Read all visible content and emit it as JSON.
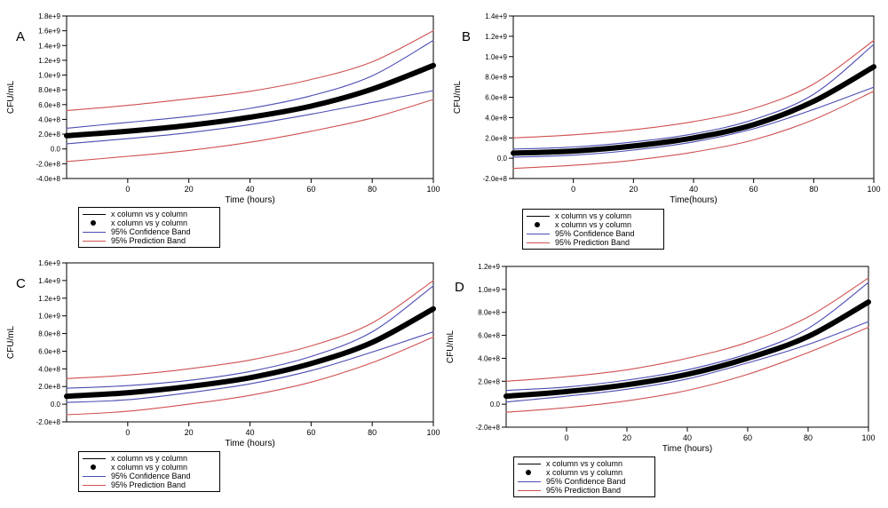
{
  "legend_entries": [
    {
      "label": "x column vs y column",
      "symbol": "line",
      "color": "#000000"
    },
    {
      "label": "x column vs y column",
      "symbol": "dot",
      "color": "#000000"
    },
    {
      "label": "95% Confidence Band",
      "symbol": "line",
      "color": "#4b4bb4"
    },
    {
      "label": "95% Prediction Band",
      "symbol": "line",
      "color": "#d05050"
    }
  ],
  "colors": {
    "fit": "#000000",
    "confidence": "#4b4bb4",
    "prediction": "#d05050"
  },
  "chart_data": [
    {
      "panel": "A",
      "type": "line",
      "xlabel": "Time (hours)",
      "ylabel": "CFU/mL",
      "xlim": [
        -20,
        100
      ],
      "ylim": [
        -400000000,
        1800000000
      ],
      "xticks": [
        0,
        20,
        40,
        60,
        80,
        100
      ],
      "yticks": [
        -400000000,
        -200000000,
        0,
        200000000,
        400000000,
        600000000,
        800000000,
        1000000000,
        1200000000,
        1400000000,
        1600000000,
        1800000000
      ],
      "ytick_labels": [
        "-4.0e+8",
        "-2.0e+8",
        "0.0",
        "2.0e+8",
        "4.0e+8",
        "6.0e+8",
        "8.0e+8",
        "1.0e+9",
        "1.2e+9",
        "1.4e+9",
        "1.6e+9",
        "1.8e+9"
      ],
      "x": [
        -20,
        0,
        20,
        40,
        60,
        80,
        100
      ],
      "series": [
        {
          "name": "x column vs y column",
          "role": "fit",
          "values": [
            180000000,
            240000000,
            320000000,
            430000000,
            580000000,
            810000000,
            1130000000
          ]
        },
        {
          "name": "95% Confidence Band",
          "role": "ci-upper",
          "values": [
            280000000,
            360000000,
            440000000,
            550000000,
            720000000,
            990000000,
            1470000000
          ]
        },
        {
          "name": "95% Confidence Band",
          "role": "ci-lower",
          "values": [
            70000000,
            140000000,
            220000000,
            330000000,
            470000000,
            630000000,
            790000000
          ]
        },
        {
          "name": "95% Prediction Band",
          "role": "pi-upper",
          "values": [
            520000000,
            590000000,
            680000000,
            780000000,
            940000000,
            1180000000,
            1600000000
          ]
        },
        {
          "name": "95% Prediction Band",
          "role": "pi-lower",
          "values": [
            -170000000,
            -100000000,
            -20000000,
            90000000,
            240000000,
            420000000,
            670000000
          ]
        }
      ]
    },
    {
      "panel": "B",
      "type": "line",
      "xlabel": "Time(hours)",
      "ylabel": "CFU/mL",
      "xlim": [
        -20,
        100
      ],
      "ylim": [
        -200000000,
        1400000000
      ],
      "xticks": [
        0,
        20,
        40,
        60,
        80,
        100
      ],
      "yticks": [
        -200000000,
        0,
        200000000,
        400000000,
        600000000,
        800000000,
        1000000000,
        1200000000,
        1400000000
      ],
      "ytick_labels": [
        "-2.0e+8",
        "0.0",
        "2.0e+8",
        "4.0e+8",
        "6.0e+8",
        "8.0e+8",
        "1.0e+9",
        "1.2e+9",
        "1.4e+9"
      ],
      "x": [
        -20,
        0,
        20,
        40,
        60,
        80,
        100
      ],
      "series": [
        {
          "name": "x column vs y column",
          "role": "fit",
          "values": [
            50000000,
            70000000,
            120000000,
            200000000,
            330000000,
            560000000,
            900000000
          ]
        },
        {
          "name": "95% Confidence Band",
          "role": "ci-upper",
          "values": [
            90000000,
            110000000,
            160000000,
            240000000,
            380000000,
            630000000,
            1120000000
          ]
        },
        {
          "name": "95% Confidence Band",
          "role": "ci-lower",
          "values": [
            10000000,
            30000000,
            80000000,
            160000000,
            290000000,
            480000000,
            700000000
          ]
        },
        {
          "name": "95% Prediction Band",
          "role": "pi-upper",
          "values": [
            200000000,
            230000000,
            280000000,
            360000000,
            490000000,
            730000000,
            1160000000
          ]
        },
        {
          "name": "95% Prediction Band",
          "role": "pi-lower",
          "values": [
            -100000000,
            -70000000,
            -20000000,
            60000000,
            180000000,
            380000000,
            660000000
          ]
        }
      ]
    },
    {
      "panel": "C",
      "type": "line",
      "xlabel": "Time (hours)",
      "ylabel": "CFU/mL",
      "xlim": [
        -20,
        100
      ],
      "ylim": [
        -200000000,
        1600000000
      ],
      "xticks": [
        0,
        20,
        40,
        60,
        80,
        100
      ],
      "yticks": [
        -200000000,
        0,
        200000000,
        400000000,
        600000000,
        800000000,
        1000000000,
        1200000000,
        1400000000,
        1600000000
      ],
      "ytick_labels": [
        "-2.0e+8",
        "0.0",
        "2.0e+8",
        "4.0e+8",
        "6.0e+8",
        "8.0e+8",
        "1.0e+9",
        "1.2e+9",
        "1.4e+9",
        "1.6e+9"
      ],
      "x": [
        -20,
        0,
        20,
        40,
        60,
        80,
        100
      ],
      "series": [
        {
          "name": "x column vs y column",
          "role": "fit",
          "values": [
            90000000,
            130000000,
            200000000,
            300000000,
            460000000,
            700000000,
            1080000000
          ]
        },
        {
          "name": "95% Confidence Band",
          "role": "ci-upper",
          "values": [
            180000000,
            210000000,
            270000000,
            370000000,
            540000000,
            820000000,
            1340000000
          ]
        },
        {
          "name": "95% Confidence Band",
          "role": "ci-lower",
          "values": [
            20000000,
            50000000,
            130000000,
            230000000,
            380000000,
            590000000,
            820000000
          ]
        },
        {
          "name": "95% Prediction Band",
          "role": "pi-upper",
          "values": [
            290000000,
            330000000,
            400000000,
            500000000,
            660000000,
            920000000,
            1400000000
          ]
        },
        {
          "name": "95% Prediction Band",
          "role": "pi-lower",
          "values": [
            -120000000,
            -80000000,
            0,
            100000000,
            250000000,
            470000000,
            760000000
          ]
        }
      ]
    },
    {
      "panel": "D",
      "type": "line",
      "xlabel": "Time (hours)",
      "ylabel": "CFU/mL",
      "xlim": [
        -20,
        100
      ],
      "ylim": [
        -200000000,
        1200000000
      ],
      "xticks": [
        0,
        20,
        40,
        60,
        80,
        100
      ],
      "yticks": [
        -200000000,
        0,
        200000000,
        400000000,
        600000000,
        800000000,
        1000000000,
        1200000000
      ],
      "ytick_labels": [
        "-2.0e+8",
        "0.0",
        "2.0e+8",
        "4.0e+8",
        "6.0e+8",
        "8.0e+8",
        "1.0e+9",
        "1.2e+9"
      ],
      "x": [
        -20,
        0,
        20,
        40,
        60,
        80,
        100
      ],
      "series": [
        {
          "name": "x column vs y column",
          "role": "fit",
          "values": [
            70000000,
            110000000,
            170000000,
            260000000,
            400000000,
            590000000,
            890000000
          ]
        },
        {
          "name": "95% Confidence Band",
          "role": "ci-upper",
          "values": [
            120000000,
            150000000,
            210000000,
            300000000,
            440000000,
            660000000,
            1060000000
          ]
        },
        {
          "name": "95% Confidence Band",
          "role": "ci-lower",
          "values": [
            20000000,
            70000000,
            130000000,
            220000000,
            360000000,
            520000000,
            720000000
          ]
        },
        {
          "name": "95% Prediction Band",
          "role": "pi-upper",
          "values": [
            200000000,
            240000000,
            300000000,
            400000000,
            540000000,
            760000000,
            1100000000
          ]
        },
        {
          "name": "95% Prediction Band",
          "role": "pi-lower",
          "values": [
            -70000000,
            -30000000,
            30000000,
            120000000,
            260000000,
            450000000,
            670000000
          ]
        }
      ]
    }
  ]
}
